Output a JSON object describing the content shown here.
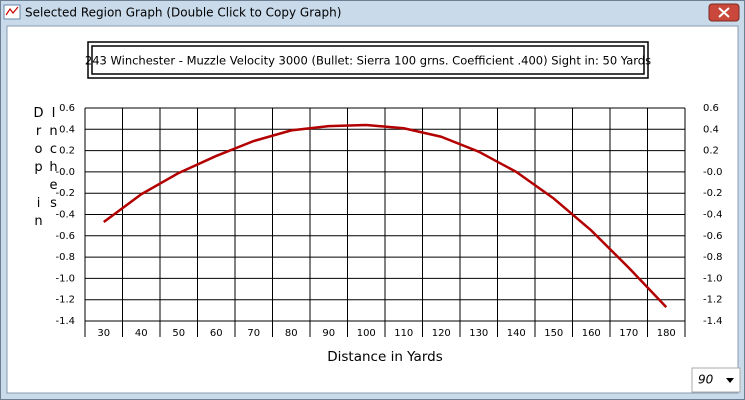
{
  "window": {
    "title": "Selected Region Graph (Double Click to Copy Graph)"
  },
  "dropdown": {
    "selected": "90"
  },
  "chart_data": {
    "type": "line",
    "title": "243 Winchester - Muzzle Velocity 3000 (Bullet: Sierra  100 grns. Coefficient .400) Sight in: 50 Yards",
    "x_label": "Distance in Yards",
    "y_label": "Drop in Inches",
    "categories": [
      "30",
      "40",
      "50",
      "60",
      "70",
      "80",
      "90",
      "100",
      "110",
      "120",
      "130",
      "140",
      "150",
      "160",
      "170",
      "180"
    ],
    "series": [
      {
        "name": "Drop",
        "color": "#b30000",
        "values": [
          -0.47,
          -0.21,
          -0.01,
          0.15,
          0.29,
          0.39,
          0.43,
          0.44,
          0.41,
          0.33,
          0.19,
          0.0,
          -0.25,
          -0.55,
          -0.9,
          -1.27
        ]
      }
    ],
    "ylim": [
      -1.4,
      0.6
    ],
    "yticks": [
      0.6,
      0.4,
      0.2,
      {
        "value": 0,
        "label": "-0.0"
      },
      -0.2,
      -0.4,
      -0.6,
      -0.8,
      {
        "value": -1,
        "label": "-1.0"
      },
      -1.2,
      -1.4
    ],
    "grid": true
  }
}
